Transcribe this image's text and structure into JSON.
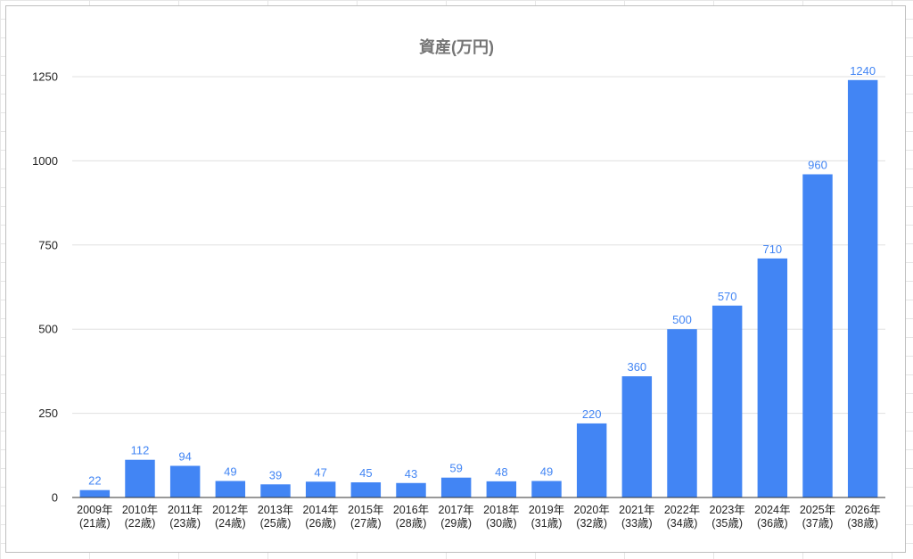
{
  "chart_data": {
    "type": "bar",
    "title": "資産(万円)",
    "xlabel": "",
    "ylabel": "",
    "categories": [
      [
        "2009年",
        "(21歳)"
      ],
      [
        "2010年",
        "(22歳)"
      ],
      [
        "2011年",
        "(23歳)"
      ],
      [
        "2012年",
        "(24歳)"
      ],
      [
        "2013年",
        "(25歳)"
      ],
      [
        "2014年",
        "(26歳)"
      ],
      [
        "2015年",
        "(27歳)"
      ],
      [
        "2016年",
        "(28歳)"
      ],
      [
        "2017年",
        "(29歳)"
      ],
      [
        "2018年",
        "(30歳)"
      ],
      [
        "2019年",
        "(31歳)"
      ],
      [
        "2020年",
        "(32歳)"
      ],
      [
        "2021年",
        "(33歳)"
      ],
      [
        "2022年",
        "(34歳)"
      ],
      [
        "2023年",
        "(35歳)"
      ],
      [
        "2024年",
        "(36歳)"
      ],
      [
        "2025年",
        "(37歳)"
      ],
      [
        "2026年",
        "(38歳)"
      ]
    ],
    "values": [
      22,
      112,
      94,
      49,
      39,
      47,
      45,
      43,
      59,
      48,
      49,
      220,
      360,
      500,
      570,
      710,
      960,
      1240
    ],
    "ylim": [
      0,
      1250
    ],
    "yticks": [
      "0",
      "250",
      "500",
      "750",
      "1000",
      "1250"
    ],
    "grid": true,
    "legend": "none",
    "bar_color": "#4285f4",
    "label_color": "#4285f4"
  }
}
